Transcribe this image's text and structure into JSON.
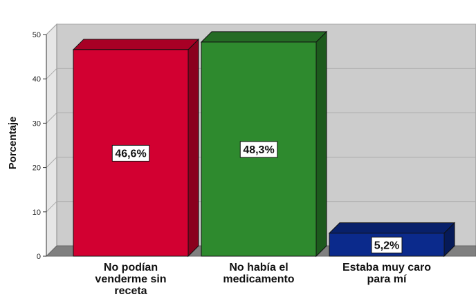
{
  "chart_data": {
    "type": "bar",
    "style": "3d",
    "ylabel": "Porcentaje",
    "ylim": [
      0,
      50
    ],
    "yticks": [
      "0",
      "10",
      "20",
      "30",
      "40",
      "50"
    ],
    "grid": true,
    "categories": [
      [
        "No podían",
        "venderme sin",
        "receta"
      ],
      [
        "No había el",
        "medicamento"
      ],
      [
        "Estaba muy caro",
        "para mí"
      ]
    ],
    "values": [
      46.6,
      48.3,
      5.2
    ],
    "data_labels": [
      "46,6%",
      "48,3%",
      "5,2%"
    ],
    "colors": {
      "bars_front": [
        "#d20031",
        "#2e8a2e",
        "#0b2a8c"
      ],
      "bars_top": [
        "#a80025",
        "#246b24",
        "#08206a"
      ],
      "bars_side": [
        "#8a001e",
        "#1d5a1d",
        "#061a58"
      ],
      "plot_back": "#cccccc",
      "plot_floor": "#808080",
      "plot_wall": "#e6e6e6"
    }
  }
}
